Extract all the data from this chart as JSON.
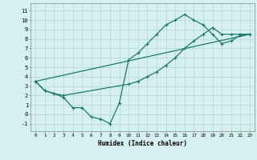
{
  "title": "",
  "xlabel": "Humidex (Indice chaleur)",
  "bg_color": "#d6f0ef",
  "grid_color": "#b8dbd8",
  "line_color": "#1a7a6e",
  "xlim": [
    -0.5,
    23.5
  ],
  "ylim": [
    -1.8,
    11.8
  ],
  "xticks": [
    0,
    1,
    2,
    3,
    4,
    5,
    6,
    7,
    8,
    9,
    10,
    11,
    12,
    13,
    14,
    15,
    16,
    17,
    18,
    19,
    20,
    21,
    22,
    23
  ],
  "yticks": [
    -1,
    0,
    1,
    2,
    3,
    4,
    5,
    6,
    7,
    8,
    9,
    10,
    11
  ],
  "series1_x": [
    0,
    1,
    2,
    3,
    4,
    5,
    6,
    7,
    8,
    9,
    10,
    11,
    12,
    13,
    14,
    15,
    16,
    17,
    18,
    19,
    20,
    21,
    22,
    23
  ],
  "series1_y": [
    3.5,
    2.5,
    2.2,
    1.8,
    0.7,
    0.7,
    -0.3,
    -0.5,
    -1.0,
    1.2,
    5.8,
    6.5,
    7.5,
    8.5,
    9.5,
    10.0,
    10.6,
    10.0,
    9.5,
    8.5,
    7.5,
    7.8,
    8.4,
    8.5
  ],
  "series2_x": [
    0,
    1,
    2,
    3,
    10,
    11,
    12,
    13,
    14,
    15,
    16,
    17,
    18,
    19,
    20,
    21,
    22,
    23
  ],
  "series2_y": [
    3.5,
    2.5,
    2.2,
    2.0,
    3.2,
    3.5,
    4.0,
    4.5,
    5.2,
    6.0,
    7.0,
    7.8,
    8.5,
    9.2,
    8.5,
    8.5,
    8.5,
    8.5
  ],
  "series3_x": [
    0,
    23
  ],
  "series3_y": [
    3.5,
    8.5
  ]
}
